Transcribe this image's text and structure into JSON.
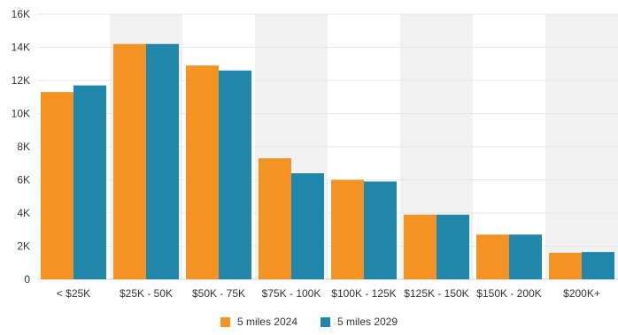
{
  "chart_data": {
    "type": "bar",
    "categories": [
      "< $25K",
      "$25K - 50K",
      "$50K - 75K",
      "$75K - 100K",
      "$100K - 125K",
      "$125K - 150K",
      "$150K - 200K",
      "$200K+"
    ],
    "series": [
      {
        "name": "5 miles 2024",
        "color": "#f39323",
        "values": [
          11300,
          14200,
          12900,
          7300,
          6000,
          3900,
          2700,
          1600
        ]
      },
      {
        "name": "5 miles 2029",
        "color": "#2187aa",
        "values": [
          11700,
          14200,
          12600,
          6400,
          5900,
          3900,
          2700,
          1650
        ]
      }
    ],
    "yticks": [
      "0",
      "2K",
      "4K",
      "6K",
      "8K",
      "10K",
      "12K",
      "14K",
      "16K"
    ],
    "ylim": [
      0,
      16000
    ],
    "grid": true,
    "alternating_bands": true,
    "band_color": "#f1f1f1",
    "legend_position": "bottom-center",
    "title": "",
    "xlabel": "",
    "ylabel": ""
  }
}
